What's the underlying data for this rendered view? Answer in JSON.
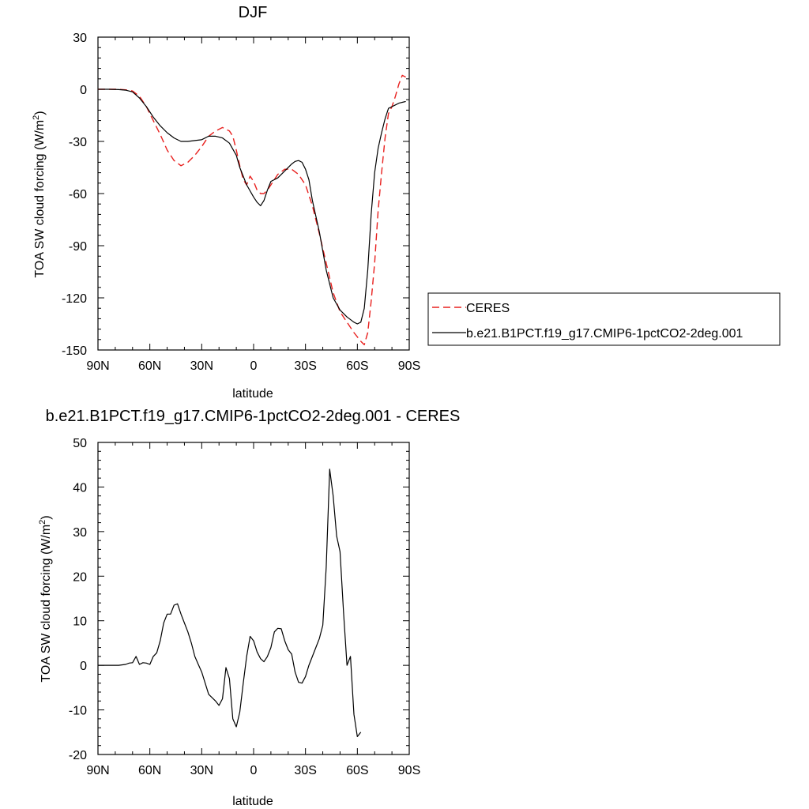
{
  "chart_data": [
    {
      "type": "line",
      "title": "DJF",
      "xlabel": "latitude",
      "ylabel": "TOA SW cloud forcing (W/m",
      "ylabel_sup": "2",
      "ylabel_end": ")",
      "xlim": [
        90,
        -90
      ],
      "ylim": [
        -150,
        30
      ],
      "xticks": [
        90,
        60,
        30,
        0,
        -30,
        -60,
        -90
      ],
      "xtick_labels": [
        "90N",
        "60N",
        "30N",
        "0",
        "30S",
        "60S",
        "90S"
      ],
      "yticks": [
        30,
        0,
        -30,
        -60,
        -90,
        -120,
        -150
      ],
      "ytick_labels": [
        "30",
        "0",
        "-30",
        "-60",
        "-90",
        "-120",
        "-150"
      ],
      "grid": false,
      "legend_position": "right",
      "series": [
        {
          "name": "CERES",
          "color": "#e8201e",
          "dash": "dashed",
          "points": [
            [
              90,
              0
            ],
            [
              84,
              0
            ],
            [
              78,
              0
            ],
            [
              74,
              -0.3
            ],
            [
              70,
              -1
            ],
            [
              66,
              -4
            ],
            [
              62,
              -10
            ],
            [
              58,
              -18
            ],
            [
              54,
              -26
            ],
            [
              50,
              -35
            ],
            [
              46,
              -41
            ],
            [
              42,
              -44
            ],
            [
              38,
              -42
            ],
            [
              34,
              -38
            ],
            [
              30,
              -33
            ],
            [
              26,
              -27
            ],
            [
              22,
              -24
            ],
            [
              18,
              -22
            ],
            [
              14,
              -24
            ],
            [
              12,
              -27
            ],
            [
              10,
              -35
            ],
            [
              8,
              -44
            ],
            [
              6,
              -52
            ],
            [
              4,
              -55
            ],
            [
              2,
              -50
            ],
            [
              0,
              -53
            ],
            [
              -2,
              -58
            ],
            [
              -4,
              -60
            ],
            [
              -6,
              -60
            ],
            [
              -8,
              -58
            ],
            [
              -10,
              -55
            ],
            [
              -14,
              -49
            ],
            [
              -18,
              -46
            ],
            [
              -22,
              -46
            ],
            [
              -26,
              -49
            ],
            [
              -30,
              -55
            ],
            [
              -34,
              -67
            ],
            [
              -38,
              -83
            ],
            [
              -42,
              -100
            ],
            [
              -46,
              -117
            ],
            [
              -50,
              -128
            ],
            [
              -54,
              -134
            ],
            [
              -58,
              -140
            ],
            [
              -62,
              -145
            ],
            [
              -64,
              -147
            ],
            [
              -66,
              -140
            ],
            [
              -68,
              -122
            ],
            [
              -70,
              -100
            ],
            [
              -72,
              -70
            ],
            [
              -74,
              -48
            ],
            [
              -76,
              -28
            ],
            [
              -78,
              -14
            ],
            [
              -80,
              -10
            ],
            [
              -82,
              -4
            ],
            [
              -84,
              3
            ],
            [
              -86,
              8
            ],
            [
              -88,
              7
            ]
          ]
        },
        {
          "name": "b.e21.B1PCT.f19_g17.CMIP6-1pctCO2-2deg.001",
          "color": "#000000",
          "dash": "solid",
          "points": [
            [
              90,
              0
            ],
            [
              84,
              0
            ],
            [
              78,
              -0.2
            ],
            [
              74,
              -0.5
            ],
            [
              70,
              -1.5
            ],
            [
              66,
              -5
            ],
            [
              62,
              -10
            ],
            [
              58,
              -16
            ],
            [
              54,
              -21
            ],
            [
              50,
              -25
            ],
            [
              46,
              -28
            ],
            [
              42,
              -30
            ],
            [
              38,
              -30
            ],
            [
              34,
              -29.5
            ],
            [
              30,
              -29
            ],
            [
              26,
              -27
            ],
            [
              22,
              -27
            ],
            [
              18,
              -28
            ],
            [
              14,
              -31
            ],
            [
              10,
              -38
            ],
            [
              8,
              -45
            ],
            [
              4,
              -55
            ],
            [
              0,
              -62
            ],
            [
              -2,
              -65
            ],
            [
              -4,
              -67
            ],
            [
              -6,
              -64
            ],
            [
              -8,
              -58
            ],
            [
              -10,
              -53
            ],
            [
              -14,
              -51
            ],
            [
              -18,
              -47
            ],
            [
              -22,
              -43
            ],
            [
              -24,
              -41.5
            ],
            [
              -26,
              -41
            ],
            [
              -28,
              -42
            ],
            [
              -30,
              -46
            ],
            [
              -32,
              -52
            ],
            [
              -34,
              -64
            ],
            [
              -38,
              -82
            ],
            [
              -42,
              -104
            ],
            [
              -46,
              -120
            ],
            [
              -50,
              -127
            ],
            [
              -54,
              -131
            ],
            [
              -58,
              -134
            ],
            [
              -60,
              -135
            ],
            [
              -62,
              -134
            ],
            [
              -64,
              -126
            ],
            [
              -66,
              -104
            ],
            [
              -68,
              -72
            ],
            [
              -70,
              -48
            ],
            [
              -72,
              -34
            ],
            [
              -74,
              -25
            ],
            [
              -76,
              -17
            ],
            [
              -78,
              -11
            ],
            [
              -80,
              -10
            ],
            [
              -82,
              -9
            ],
            [
              -84,
              -8
            ],
            [
              -86,
              -7.5
            ],
            [
              -88,
              -7
            ]
          ]
        }
      ]
    },
    {
      "type": "line",
      "title": "b.e21.B1PCT.f19_g17.CMIP6-1pctCO2-2deg.001 - CERES",
      "xlabel": "latitude",
      "ylabel": "TOA SW cloud forcing (W/m",
      "ylabel_sup": "2",
      "ylabel_end": ")",
      "xlim": [
        90,
        -90
      ],
      "ylim": [
        -20,
        50
      ],
      "xticks": [
        90,
        60,
        30,
        0,
        -30,
        -60,
        -90
      ],
      "xtick_labels": [
        "90N",
        "60N",
        "30N",
        "0",
        "30S",
        "60S",
        "90S"
      ],
      "yticks": [
        50,
        40,
        30,
        20,
        10,
        0,
        -10,
        -20
      ],
      "ytick_labels": [
        "50",
        "40",
        "30",
        "20",
        "10",
        "0",
        "-10",
        "-20"
      ],
      "grid": false,
      "series": [
        {
          "color": "#000000",
          "dash": "solid",
          "points": [
            [
              90,
              0
            ],
            [
              84,
              0
            ],
            [
              78,
              0
            ],
            [
              74,
              0.2
            ],
            [
              72,
              0.5
            ],
            [
              70,
              0.6
            ],
            [
              68,
              2
            ],
            [
              66,
              0.2
            ],
            [
              64,
              0.6
            ],
            [
              62,
              0.5
            ],
            [
              60,
              0.2
            ],
            [
              58,
              2
            ],
            [
              56,
              2.8
            ],
            [
              54,
              5.5
            ],
            [
              52,
              9.5
            ],
            [
              50,
              11.5
            ],
            [
              48,
              11.5
            ],
            [
              46,
              13.5
            ],
            [
              44,
              13.8
            ],
            [
              42,
              11.5
            ],
            [
              40,
              9.5
            ],
            [
              38,
              7.5
            ],
            [
              36,
              5
            ],
            [
              34,
              2
            ],
            [
              32,
              0.2
            ],
            [
              30,
              -1.5
            ],
            [
              28,
              -4
            ],
            [
              26,
              -6.5
            ],
            [
              22,
              -8
            ],
            [
              20,
              -9
            ],
            [
              18,
              -7.5
            ],
            [
              16,
              -0.5
            ],
            [
              14,
              -3
            ],
            [
              12,
              -12
            ],
            [
              10,
              -13.8
            ],
            [
              8,
              -10.5
            ],
            [
              6,
              -4
            ],
            [
              4,
              2
            ],
            [
              2,
              6.5
            ],
            [
              0,
              5.5
            ],
            [
              -2,
              3
            ],
            [
              -4,
              1.5
            ],
            [
              -6,
              0.8
            ],
            [
              -8,
              2
            ],
            [
              -10,
              4
            ],
            [
              -12,
              7.5
            ],
            [
              -14,
              8.3
            ],
            [
              -16,
              8.2
            ],
            [
              -18,
              5.5
            ],
            [
              -20,
              3.5
            ],
            [
              -22,
              2.5
            ],
            [
              -24,
              -1.5
            ],
            [
              -26,
              -3.8
            ],
            [
              -28,
              -4
            ],
            [
              -30,
              -2.5
            ],
            [
              -32,
              0
            ],
            [
              -34,
              2
            ],
            [
              -36,
              4
            ],
            [
              -38,
              6
            ],
            [
              -40,
              9
            ],
            [
              -42,
              22
            ],
            [
              -44,
              44
            ],
            [
              -46,
              38
            ],
            [
              -48,
              29
            ],
            [
              -50,
              25.5
            ],
            [
              -52,
              12
            ],
            [
              -54,
              0
            ],
            [
              -56,
              2
            ],
            [
              -58,
              -11
            ],
            [
              -60,
              -16
            ],
            [
              -62,
              -15
            ]
          ]
        }
      ]
    }
  ]
}
